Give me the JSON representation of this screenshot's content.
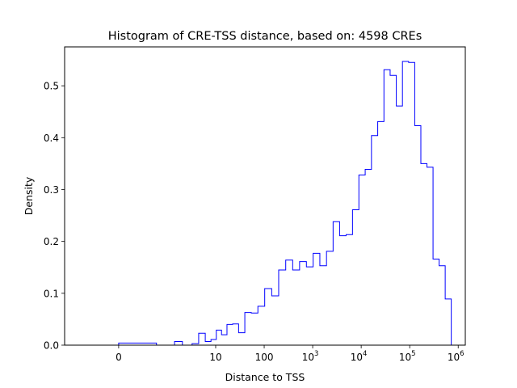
{
  "chart_data": {
    "type": "histogram",
    "title": "Histogram of CRE-TSS distance, based on: 4598 CREs",
    "xlabel": "Distance to TSS",
    "ylabel": "Density",
    "xscale": "symlog",
    "xlim": [
      -1.3,
      1400000
    ],
    "ylim": [
      0,
      0.575
    ],
    "grid": false,
    "legend": "none",
    "line_color": "#0000ff",
    "x_ticks": [
      {
        "value": 0,
        "base": "0",
        "exp": ""
      },
      {
        "value": 10,
        "base": "10",
        "exp": ""
      },
      {
        "value": 100,
        "base": "100",
        "exp": ""
      },
      {
        "value": 1000,
        "base": "10",
        "exp": "3"
      },
      {
        "value": 10000,
        "base": "10",
        "exp": "4"
      },
      {
        "value": 100000,
        "base": "10",
        "exp": "5"
      },
      {
        "value": 1000000,
        "base": "10",
        "exp": "6"
      }
    ],
    "y_ticks": [
      {
        "value": 0.0,
        "label": "0.0"
      },
      {
        "value": 0.1,
        "label": "0.1"
      },
      {
        "value": 0.2,
        "label": "0.2"
      },
      {
        "value": 0.3,
        "label": "0.3"
      },
      {
        "value": 0.4,
        "label": "0.4"
      },
      {
        "value": 0.5,
        "label": "0.5"
      }
    ],
    "bin_edges": [
      0,
      0.78,
      1.42,
      2.06,
      3.26,
      4.46,
      6.1,
      8.0,
      10.3,
      13.2,
      17.1,
      22.4,
      29.7,
      39.9,
      54.2,
      74.2,
      102.5,
      143,
      199,
      278,
      387,
      537,
      742,
      1022,
      1405,
      1927,
      2635,
      3590,
      4880,
      6620,
      8960,
      12090,
      16290,
      21910,
      29440,
      39500,
      52950,
      70900,
      94900,
      127000,
      169800,
      226800,
      302800,
      404200,
      539300,
      719500
    ],
    "densities": [
      0.004,
      0.0,
      0.007,
      0.0,
      0.003,
      0.023,
      0.007,
      0.011,
      0.029,
      0.02,
      0.04,
      0.041,
      0.024,
      0.063,
      0.062,
      0.075,
      0.109,
      0.095,
      0.145,
      0.164,
      0.145,
      0.161,
      0.151,
      0.177,
      0.153,
      0.181,
      0.238,
      0.211,
      0.213,
      0.261,
      0.328,
      0.339,
      0.404,
      0.431,
      0.531,
      0.52,
      0.461,
      0.547,
      0.545,
      0.423,
      0.35,
      0.343,
      0.166,
      0.153,
      0.089
    ]
  }
}
